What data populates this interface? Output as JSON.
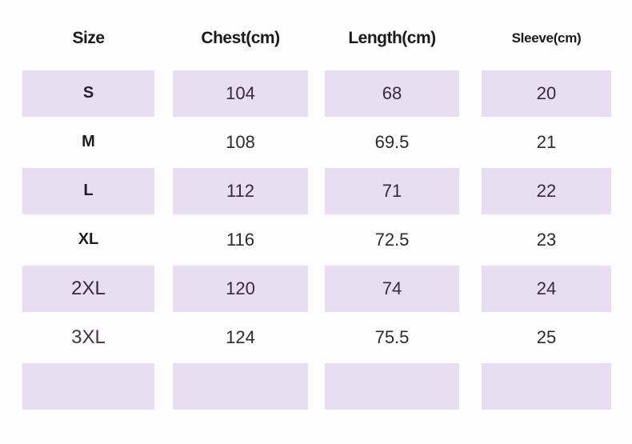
{
  "chart_data": {
    "type": "table",
    "columns": [
      "Size",
      "Chest(cm)",
      "Length(cm)",
      "Sleeve(cm)"
    ],
    "rows": [
      [
        "S",
        "104",
        "68",
        "20"
      ],
      [
        "M",
        "108",
        "69.5",
        "21"
      ],
      [
        "L",
        "112",
        "71",
        "22"
      ],
      [
        "XL",
        "116",
        "72.5",
        "23"
      ],
      [
        "2XL",
        "120",
        "74",
        "24"
      ],
      [
        "3XL",
        "124",
        "75.5",
        "25"
      ],
      [
        "",
        "",
        "",
        ""
      ]
    ],
    "layout_hints": {
      "shaded_row_indices": [
        0,
        2,
        4,
        6
      ],
      "row_shade_color": "#e8ddf1",
      "background_color": "#fefefe",
      "header_text_color": "#1a1a1a",
      "cell_text_color": "#38293b"
    }
  }
}
